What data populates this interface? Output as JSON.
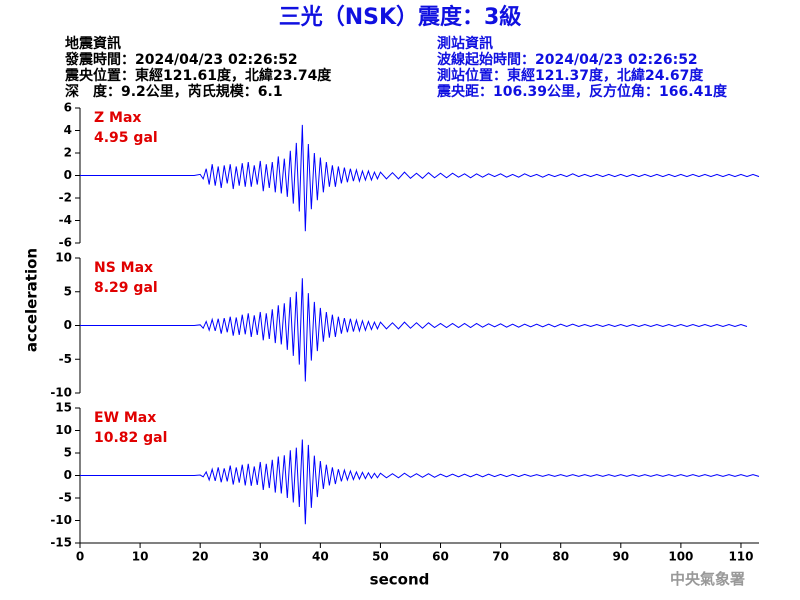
{
  "header": {
    "title": "三光（NSK）震度：3級",
    "left": [
      "地震資訊",
      "發震時間：2024/04/23 02:26:52",
      "震央位置：東經121.61度，北緯23.74度",
      "深　度：9.2公里，芮氏規模：6.1"
    ],
    "right": [
      "測站資訊",
      "波線起始時間：2024/04/23 02:26:52",
      "測站位置：東經121.37度，北緯24.67度",
      "震央距：106.39公里，反方位角：166.41度"
    ],
    "footer": "中央氣象署"
  },
  "chart_data": {
    "type": "line",
    "xlabel": "second",
    "ylabel": "acceleration",
    "xlim": [
      0,
      113
    ],
    "xticks": [
      0,
      10,
      20,
      30,
      40,
      50,
      60,
      70,
      80,
      90,
      100,
      110
    ],
    "x": [
      0,
      1,
      2,
      3,
      4,
      5,
      6,
      7,
      8,
      9,
      10,
      11,
      12,
      13,
      14,
      15,
      16,
      17,
      18,
      19,
      20,
      20.5,
      21,
      21.5,
      22,
      22.5,
      23,
      23.5,
      24,
      24.5,
      25,
      25.5,
      26,
      26.5,
      27,
      27.5,
      28,
      28.5,
      29,
      29.5,
      30,
      30.5,
      31,
      31.5,
      32,
      32.5,
      33,
      33.5,
      34,
      34.5,
      35,
      35.5,
      36,
      36.5,
      37,
      37.5,
      38,
      38.5,
      39,
      39.5,
      40,
      40.5,
      41,
      41.5,
      42,
      42.5,
      43,
      43.5,
      44,
      44.5,
      45,
      45.5,
      46,
      46.5,
      47,
      47.5,
      48,
      48.5,
      49,
      49.5,
      50,
      51,
      52,
      53,
      54,
      55,
      56,
      57,
      58,
      59,
      60,
      61,
      62,
      63,
      64,
      65,
      66,
      67,
      68,
      69,
      70,
      71,
      72,
      73,
      74,
      75,
      76,
      77,
      78,
      79,
      80,
      81,
      82,
      83,
      84,
      85,
      86,
      87,
      88,
      89,
      90,
      91,
      92,
      93,
      94,
      95,
      96,
      97,
      98,
      99,
      100,
      101,
      102,
      103,
      104,
      105,
      106,
      107,
      108,
      109,
      110,
      111,
      112,
      113
    ],
    "panels": [
      {
        "name": "Z Max",
        "max_label": "4.95 gal",
        "color": "#0000ff",
        "ylim": [
          -6,
          6
        ],
        "yticks": [
          -6,
          -4,
          -2,
          0,
          2,
          4,
          6
        ],
        "values": [
          0,
          0,
          0,
          0,
          0,
          0,
          0,
          0,
          0,
          0,
          0,
          0,
          0,
          0,
          0,
          0,
          0,
          0,
          0,
          0,
          0.1,
          -0.3,
          0.6,
          -0.8,
          1.0,
          -0.9,
          0.8,
          -1.1,
          0.9,
          -0.7,
          1.0,
          -1.2,
          0.8,
          -0.9,
          1.1,
          -1.0,
          1.2,
          -1.0,
          0.9,
          -0.8,
          1.3,
          -1.4,
          1.0,
          -1.1,
          1.2,
          -1.5,
          1.7,
          -1.6,
          1.5,
          -1.9,
          2.2,
          -2.5,
          2.9,
          -3.2,
          4.5,
          -4.95,
          2.8,
          -3.0,
          2.0,
          -2.2,
          1.6,
          -1.5,
          1.2,
          -1.0,
          0.9,
          -1.0,
          0.8,
          -0.7,
          0.7,
          -0.6,
          0.6,
          -0.5,
          0.5,
          -0.5,
          0.4,
          -0.4,
          0.4,
          -0.4,
          0.3,
          -0.3,
          0.3,
          -0.3,
          0.25,
          -0.3,
          0.3,
          -0.25,
          0.2,
          -0.25,
          0.25,
          -0.2,
          0.2,
          -0.2,
          0.2,
          -0.15,
          0.15,
          -0.2,
          0.15,
          -0.15,
          0.15,
          -0.1,
          0.15,
          -0.15,
          0.1,
          -0.15,
          0.15,
          -0.1,
          0.1,
          -0.15,
          0.1,
          -0.1,
          0.1,
          -0.1,
          0.15,
          -0.1,
          0.1,
          -0.1,
          0.1,
          -0.1,
          0.1,
          -0.1,
          0.1,
          -0.1,
          0.1,
          -0.1,
          0.1,
          -0.1,
          0.1,
          -0.1,
          0.1,
          -0.1,
          0.1,
          -0.1,
          0.1,
          -0.1,
          0.1,
          -0.1,
          0.1,
          -0.1,
          0.1,
          -0.1,
          0.1,
          -0.1,
          0.1,
          -0.1
        ]
      },
      {
        "name": "NS Max",
        "max_label": "8.29 gal",
        "color": "#0000ff",
        "ylim": [
          -10,
          10
        ],
        "yticks": [
          -10,
          -5,
          0,
          5,
          10
        ],
        "values": [
          0,
          0,
          0,
          0,
          0,
          0,
          0,
          0,
          0,
          0,
          0,
          0,
          0,
          0,
          0,
          0,
          0,
          0,
          0,
          0,
          0.1,
          -0.4,
          0.6,
          -0.7,
          0.9,
          -0.8,
          1.0,
          -1.2,
          1.1,
          -1.0,
          1.3,
          -1.5,
          1.2,
          -1.4,
          1.6,
          -1.3,
          1.8,
          -1.7,
          1.5,
          -1.4,
          2.0,
          -2.2,
          1.8,
          -2.0,
          2.4,
          -2.6,
          3.0,
          -2.8,
          3.3,
          -3.6,
          4.2,
          -4.5,
          5.0,
          -5.8,
          7.0,
          -8.29,
          4.8,
          -5.2,
          3.5,
          -3.8,
          2.6,
          -2.4,
          2.0,
          -1.8,
          1.6,
          -1.7,
          1.3,
          -1.2,
          1.1,
          -1.0,
          1.0,
          -0.9,
          0.8,
          -0.8,
          0.7,
          -0.7,
          0.6,
          -0.6,
          0.5,
          -0.5,
          0.5,
          -0.5,
          0.4,
          -0.5,
          0.5,
          -0.4,
          0.4,
          -0.4,
          0.4,
          -0.3,
          0.3,
          -0.3,
          0.3,
          -0.3,
          0.3,
          -0.3,
          0.3,
          -0.25,
          0.25,
          -0.2,
          0.25,
          -0.25,
          0.2,
          -0.25,
          0.2,
          -0.2,
          0.2,
          -0.2,
          0.2,
          -0.2,
          0.2,
          -0.15,
          0.2,
          -0.15,
          0.15,
          -0.15,
          0.15,
          -0.15,
          0.15,
          -0.15,
          0.15,
          -0.15,
          0.15,
          -0.15,
          0.15,
          -0.15,
          0.15,
          -0.15,
          0.15,
          -0.15,
          0.15,
          -0.15,
          0.15,
          -0.15,
          0.15,
          -0.15,
          0.15,
          -0.15,
          0.15,
          -0.15,
          0.15,
          -0.15
        ]
      },
      {
        "name": "EW Max",
        "max_label": "10.82 gal",
        "color": "#0000ff",
        "ylim": [
          -15,
          15
        ],
        "yticks": [
          -15,
          -10,
          -5,
          0,
          5,
          10,
          15
        ],
        "values": [
          0,
          0,
          0,
          0,
          0,
          0,
          0,
          0,
          0,
          0,
          0,
          0,
          0,
          0,
          0,
          0,
          0,
          0,
          0,
          0,
          0.1,
          -0.3,
          0.8,
          -1.0,
          1.4,
          -1.2,
          1.8,
          -1.5,
          1.6,
          -1.3,
          2.2,
          -2.0,
          1.8,
          -1.6,
          2.4,
          -2.2,
          2.6,
          -2.3,
          2.0,
          -2.1,
          3.0,
          -3.2,
          2.6,
          -2.8,
          3.5,
          -3.8,
          4.2,
          -4.0,
          4.5,
          -5.0,
          5.6,
          -6.0,
          6.2,
          -7.0,
          8.0,
          -10.82,
          6.8,
          -7.2,
          4.4,
          -4.8,
          3.2,
          -3.0,
          2.4,
          -2.2,
          1.8,
          -1.9,
          1.4,
          -1.3,
          1.2,
          -1.0,
          1.0,
          -0.9,
          0.8,
          -0.8,
          0.7,
          -0.7,
          0.6,
          -0.6,
          0.5,
          -0.5,
          0.5,
          -0.5,
          0.4,
          -0.5,
          0.5,
          -0.4,
          0.4,
          -0.4,
          0.4,
          -0.4,
          0.3,
          -0.3,
          0.3,
          -0.3,
          0.3,
          -0.3,
          0.3,
          -0.3,
          0.3,
          -0.25,
          0.25,
          -0.25,
          0.25,
          -0.25,
          0.25,
          -0.2,
          0.2,
          -0.2,
          0.2,
          -0.2,
          0.2,
          -0.2,
          0.2,
          -0.2,
          0.2,
          -0.2,
          0.2,
          -0.2,
          0.2,
          -0.2,
          0.2,
          -0.2,
          0.2,
          -0.2,
          0.2,
          -0.2,
          0.2,
          -0.2,
          0.2,
          -0.2,
          0.2,
          -0.2,
          0.2,
          -0.2,
          0.2,
          -0.2,
          0.2,
          -0.2,
          0.2,
          -0.2,
          0.2,
          -0.2,
          0.2,
          -0.2
        ]
      }
    ]
  }
}
